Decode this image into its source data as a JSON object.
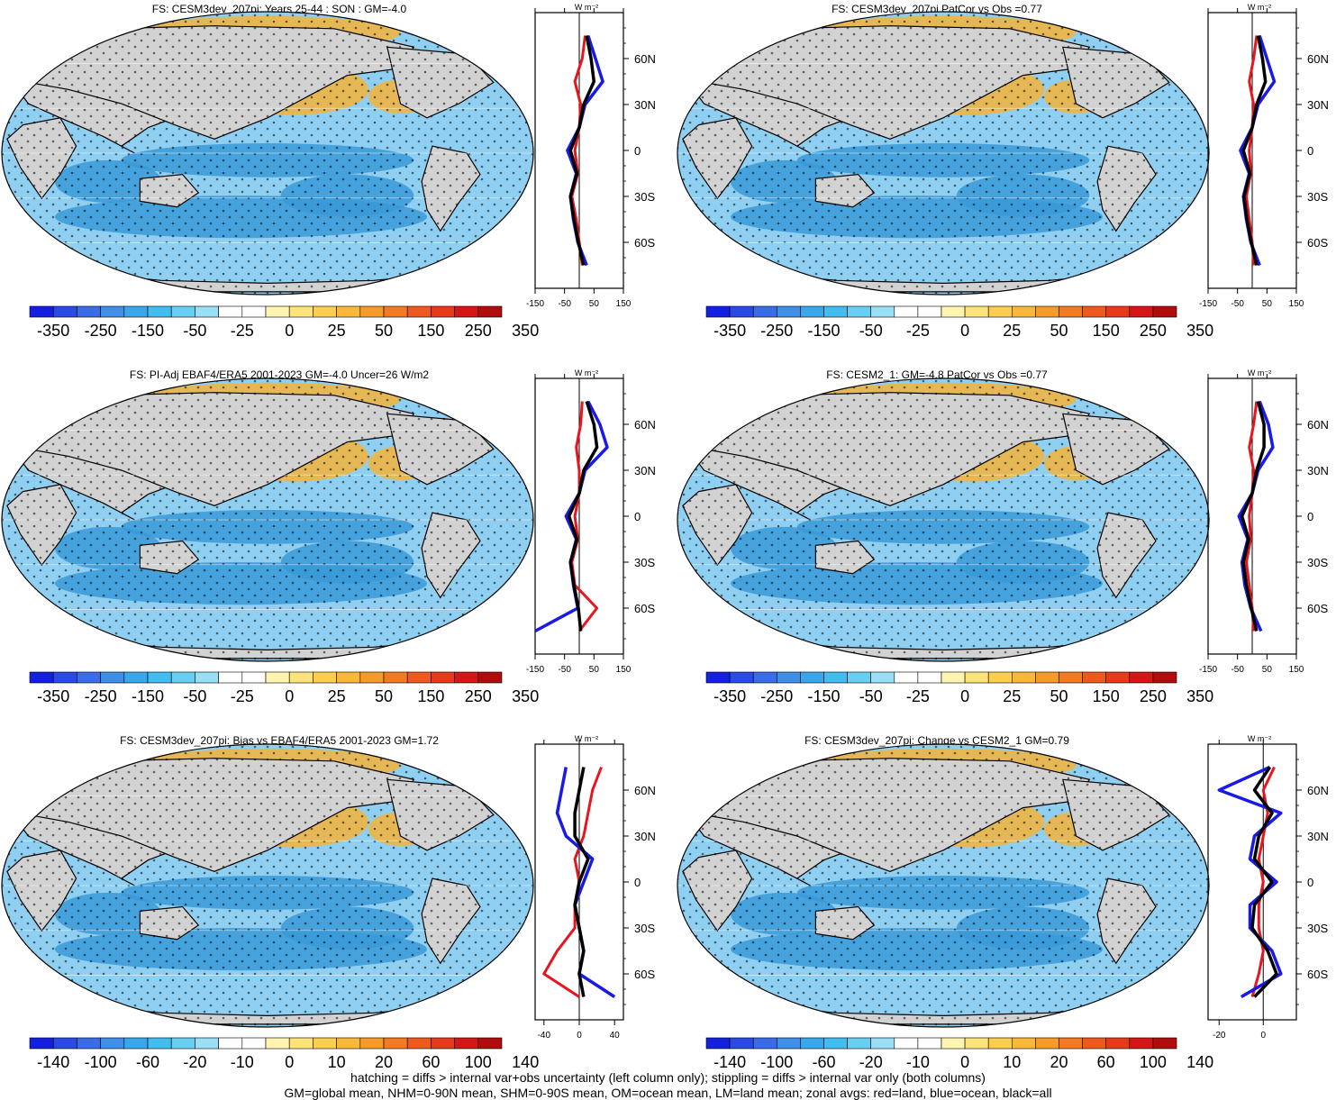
{
  "colors": {
    "land": "#d2d2d2",
    "ocean_blue": "#3a9ad8",
    "ocean_orange": "#f6b43a",
    "zonal_land": "#e8141e",
    "zonal_ocean": "#1a1ae6",
    "zonal_all": "#000000"
  },
  "map_palette": [
    "#1420e0",
    "#2a4ae6",
    "#3a6ce8",
    "#3f8ee8",
    "#3aa6ec",
    "#42bdf0",
    "#68cff2",
    "#9adff6",
    "#ffffff",
    "#ffffff",
    "#fff5b0",
    "#fde47a",
    "#fbce50",
    "#f9b83a",
    "#f69a2a",
    "#f27a22",
    "#ee5a1e",
    "#e63a1a",
    "#d41616",
    "#b00c0c"
  ],
  "panels": [
    {
      "id": "p1",
      "title": "FS: CESM3dev_207pi: Years 25-44 : SON : GM=-4.0",
      "colorbar_labels": [
        "-350",
        "-250",
        "-150",
        "-50",
        "-25",
        "0",
        "25",
        "50",
        "150",
        "250",
        "350"
      ],
      "zonal_axis_labels": [
        "-150",
        "-50",
        "50",
        "150"
      ],
      "zonal_axis_values": [
        -150,
        -50,
        50,
        150
      ],
      "zonal_xlim": [
        -150,
        150
      ],
      "zonal_unit": "W m⁻²",
      "lat_labels": [
        "60N",
        "30N",
        "0",
        "30S",
        "60S"
      ],
      "chart_data": {
        "type": "line",
        "lat": [
          75,
          60,
          45,
          30,
          15,
          0,
          -15,
          -30,
          -45,
          -60,
          -75
        ],
        "series": [
          {
            "values": [
              20,
              10,
              -15,
              5,
              0,
              -15,
              -5,
              -25,
              -10,
              0,
              10
            ]
          },
          {
            "values": [
              30,
              55,
              80,
              20,
              0,
              -40,
              -10,
              -30,
              -20,
              -5,
              25
            ]
          },
          {
            "values": [
              25,
              40,
              50,
              15,
              0,
              -30,
              -8,
              -30,
              -18,
              -3,
              15
            ]
          }
        ]
      }
    },
    {
      "id": "p2",
      "title": "FS: CESM3dev_207pi PatCor vs Obs =0.77",
      "colorbar_labels": [
        "-350",
        "-250",
        "-150",
        "-50",
        "-25",
        "0",
        "25",
        "50",
        "150",
        "250",
        "350"
      ],
      "zonal_axis_labels": [
        "-150",
        "-50",
        "50",
        "150"
      ],
      "zonal_axis_values": [
        -150,
        -50,
        50,
        150
      ],
      "zonal_xlim": [
        -150,
        150
      ],
      "zonal_unit": "W m⁻²",
      "lat_labels": [
        "60N",
        "30N",
        "0",
        "30S",
        "60S"
      ],
      "chart_data": {
        "type": "line",
        "lat": [
          75,
          60,
          45,
          30,
          15,
          0,
          -15,
          -30,
          -45,
          -60,
          -75
        ],
        "series": [
          {
            "values": [
              15,
              5,
              -10,
              5,
              0,
              -10,
              -5,
              -20,
              -10,
              0,
              5
            ]
          },
          {
            "values": [
              25,
              50,
              75,
              20,
              0,
              -40,
              -10,
              -30,
              -20,
              -5,
              25
            ]
          },
          {
            "values": [
              20,
              35,
              45,
              15,
              0,
              -30,
              -8,
              -28,
              -18,
              -3,
              15
            ]
          }
        ]
      }
    },
    {
      "id": "p3",
      "title": "FS: PI-Adj EBAF4/ERA5 2001-2023 GM=-4.0 Uncer=26 W/m2",
      "colorbar_labels": [
        "-350",
        "-250",
        "-150",
        "-50",
        "-25",
        "0",
        "25",
        "50",
        "150",
        "250",
        "350"
      ],
      "zonal_axis_labels": [
        "-150",
        "-50",
        "50",
        "150"
      ],
      "zonal_axis_values": [
        -150,
        -50,
        50,
        150
      ],
      "zonal_xlim": [
        -150,
        150
      ],
      "zonal_unit": "W m⁻²",
      "lat_labels": [
        "60N",
        "30N",
        "0",
        "30S",
        "60S"
      ],
      "chart_data": {
        "type": "line",
        "lat": [
          75,
          60,
          45,
          30,
          15,
          0,
          -15,
          -30,
          -45,
          -60,
          -75
        ],
        "series": [
          {
            "values": [
              10,
              5,
              -10,
              0,
              0,
              -15,
              -5,
              -25,
              -15,
              60,
              0
            ]
          },
          {
            "values": [
              30,
              70,
              95,
              20,
              0,
              -45,
              -10,
              -30,
              -20,
              -5,
              -150
            ]
          },
          {
            "values": [
              25,
              50,
              60,
              15,
              0,
              -35,
              -8,
              -30,
              -18,
              -3,
              5
            ]
          }
        ]
      }
    },
    {
      "id": "p4",
      "title": "FS: CESM2_1: GM=-4.8 PatCor vs Obs =0.77",
      "colorbar_labels": [
        "-350",
        "-250",
        "-150",
        "-50",
        "-25",
        "0",
        "25",
        "50",
        "150",
        "250",
        "350"
      ],
      "zonal_axis_labels": [
        "-150",
        "-50",
        "50",
        "150"
      ],
      "zonal_axis_values": [
        -150,
        -50,
        50,
        150
      ],
      "zonal_xlim": [
        -150,
        150
      ],
      "zonal_unit": "W m⁻²",
      "lat_labels": [
        "60N",
        "30N",
        "0",
        "30S",
        "60S"
      ],
      "chart_data": {
        "type": "line",
        "lat": [
          75,
          60,
          45,
          30,
          15,
          0,
          -15,
          -30,
          -45,
          -60,
          -75
        ],
        "series": [
          {
            "values": [
              15,
              5,
              -10,
              5,
              0,
              -10,
              -5,
              -20,
              -10,
              0,
              5
            ]
          },
          {
            "values": [
              25,
              55,
              70,
              20,
              0,
              -45,
              -15,
              -35,
              -25,
              -5,
              30
            ]
          },
          {
            "values": [
              20,
              40,
              40,
              15,
              0,
              -35,
              -12,
              -30,
              -20,
              -3,
              15
            ]
          }
        ]
      }
    },
    {
      "id": "p5",
      "title": "FS: CESM3dev_207pi: Bias vs EBAF4/ERA5 2001-2023  GM=1.72",
      "colorbar_labels": [
        "-140",
        "-100",
        "-60",
        "-20",
        "-10",
        "0",
        "10",
        "20",
        "60",
        "100",
        "140"
      ],
      "zonal_axis_labels": [
        "-40",
        "0",
        "40"
      ],
      "zonal_axis_values": [
        -40,
        0,
        40
      ],
      "zonal_xlim": [
        -50,
        50
      ],
      "zonal_unit": "W m⁻²",
      "lat_labels": [
        "60N",
        "30N",
        "0",
        "30S",
        "60S"
      ],
      "chart_data": {
        "type": "line",
        "lat": [
          75,
          60,
          45,
          30,
          15,
          0,
          -15,
          -30,
          -45,
          -60,
          -75
        ],
        "series": [
          {
            "values": [
              25,
              15,
              10,
              5,
              -5,
              0,
              -5,
              -5,
              -25,
              -40,
              0
            ]
          },
          {
            "values": [
              -15,
              -20,
              -25,
              -15,
              15,
              5,
              -5,
              0,
              5,
              0,
              40
            ]
          },
          {
            "values": [
              5,
              0,
              -5,
              -5,
              10,
              0,
              -5,
              0,
              5,
              0,
              5
            ]
          }
        ]
      }
    },
    {
      "id": "p6",
      "title": "FS: CESM3dev_207pi: Change vs CESM2_1 GM=0.79",
      "colorbar_labels": [
        "-140",
        "-100",
        "-60",
        "-20",
        "-10",
        "0",
        "10",
        "20",
        "60",
        "100",
        "140"
      ],
      "zonal_axis_labels": [
        "-20",
        "0"
      ],
      "zonal_axis_values": [
        -20,
        0
      ],
      "zonal_xlim": [
        -25,
        15
      ],
      "zonal_unit": "W m⁻²",
      "lat_labels": [
        "60N",
        "30N",
        "0",
        "30S",
        "60S"
      ],
      "chart_data": {
        "type": "line",
        "lat": [
          75,
          60,
          45,
          30,
          15,
          0,
          -15,
          -30,
          -45,
          -60,
          -75
        ],
        "series": [
          {
            "values": [
              5,
              0,
              2,
              0,
              -2,
              0,
              -2,
              -2,
              0,
              -2,
              -5
            ]
          },
          {
            "values": [
              3,
              -20,
              8,
              -4,
              -6,
              6,
              -6,
              -6,
              4,
              8,
              -10
            ]
          },
          {
            "values": [
              3,
              -4,
              4,
              -2,
              -4,
              4,
              -4,
              -5,
              2,
              6,
              -4
            ]
          }
        ]
      }
    }
  ],
  "footer": {
    "line1": "hatching = diffs > internal var+obs uncertainty (left column only); stippling = diffs > internal var only (both columns)",
    "line2": "GM=global mean, NHM=0-90N mean, SHM=0-90S mean, OM=ocean mean, LM=land mean; zonal avgs: red=land, blue=ocean, black=all"
  }
}
